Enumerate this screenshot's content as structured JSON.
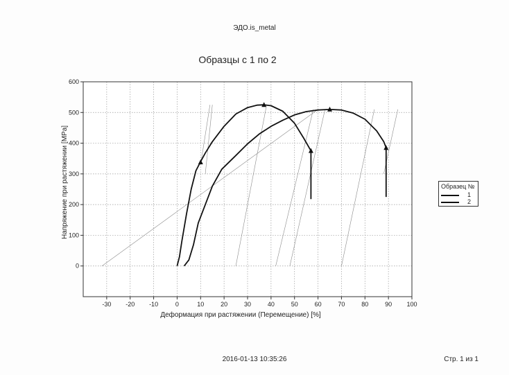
{
  "page": {
    "header": "ЭДО.is_metal",
    "timestamp": "2016-01-13 10:35:26",
    "page_number": "Стр. 1 из 1"
  },
  "chart_data": {
    "type": "line",
    "title": "Образцы с 1 по 2",
    "xlabel": "Деформация при растяжении (Перемещение) [%]",
    "ylabel": "Напряжение при растяжении [MPa]",
    "xlim": [
      -40,
      100
    ],
    "ylim": [
      -100,
      600
    ],
    "xticks": [
      -30,
      -20,
      -10,
      0,
      10,
      20,
      30,
      40,
      50,
      60,
      70,
      80,
      90,
      100
    ],
    "yticks": [
      0,
      100,
      200,
      300,
      400,
      500,
      600
    ],
    "grid": true,
    "legend": {
      "title": "Образец №",
      "position": "right",
      "entries": [
        "1",
        "2"
      ]
    },
    "series": [
      {
        "name": "1",
        "x": [
          0,
          1,
          2,
          4,
          6,
          8,
          10,
          12,
          15,
          20,
          25,
          30,
          34,
          37,
          40,
          45,
          50,
          54,
          57,
          57,
          57
        ],
        "y": [
          0,
          30,
          80,
          170,
          250,
          310,
          340,
          368,
          405,
          455,
          495,
          516,
          524,
          525,
          522,
          504,
          465,
          415,
          375,
          300,
          218
        ],
        "markers": [
          {
            "x": 10,
            "y": 338
          },
          {
            "x": 37,
            "y": 525
          },
          {
            "x": 57,
            "y": 375
          }
        ]
      },
      {
        "name": "2",
        "x": [
          3,
          5,
          7,
          9,
          12,
          15,
          19,
          25,
          30,
          35,
          40,
          45,
          50,
          55,
          60,
          65,
          70,
          75,
          80,
          85,
          88,
          89,
          89,
          89
        ],
        "y": [
          0,
          20,
          70,
          140,
          200,
          260,
          315,
          360,
          398,
          430,
          455,
          475,
          492,
          503,
          508,
          510,
          508,
          498,
          478,
          440,
          405,
          385,
          300,
          225
        ],
        "markers": [
          {
            "x": 65,
            "y": 510
          },
          {
            "x": 89,
            "y": 385
          }
        ]
      }
    ],
    "reference_lines": [
      {
        "x": [
          -32,
          60
        ],
        "y": [
          0,
          510
        ]
      },
      {
        "x": [
          10,
          14
        ],
        "y": [
          330,
          525
        ]
      },
      {
        "x": [
          12,
          15
        ],
        "y": [
          300,
          525
        ]
      },
      {
        "x": [
          25,
          38
        ],
        "y": [
          0,
          520
        ]
      },
      {
        "x": [
          42,
          58
        ],
        "y": [
          0,
          510
        ]
      },
      {
        "x": [
          48,
          63
        ],
        "y": [
          0,
          510
        ]
      },
      {
        "x": [
          70,
          84
        ],
        "y": [
          0,
          510
        ]
      },
      {
        "x": [
          88,
          94
        ],
        "y": [
          300,
          510
        ]
      }
    ]
  }
}
